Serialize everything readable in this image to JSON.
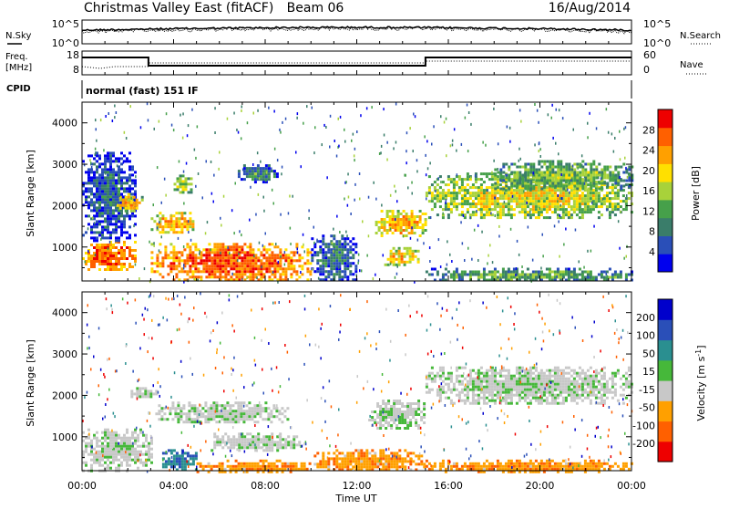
{
  "header": {
    "radar": "Christmas Valley East (fitACF)",
    "beam": "Beam 06",
    "date": "16/Aug/2014"
  },
  "noise_panel": {
    "left_label": "N.Sky",
    "right_label": "N.Search",
    "left_ticks": [
      "10^5",
      "10^0"
    ],
    "right_ticks": [
      "10^5",
      "10^0"
    ]
  },
  "freq_panel": {
    "left_label_1": "Freq.",
    "left_label_2": "[MHz]",
    "left_ticks": [
      "18",
      "8"
    ],
    "right_ticks": [
      "60",
      "0"
    ],
    "right_label": "Nave",
    "cpid_label": "CPID",
    "mode_text": "normal (fast) 151 IF"
  },
  "time_axis": {
    "label": "Time UT",
    "ticks": [
      "00:00",
      "04:00",
      "08:00",
      "12:00",
      "16:00",
      "20:00",
      "00:00"
    ]
  },
  "range_axis": {
    "label": "Slant Range [km]",
    "ticks": [
      "1000",
      "2000",
      "3000",
      "4000"
    ]
  },
  "chart_data": [
    {
      "type": "heatmap",
      "name": "power",
      "title": "",
      "xlabel": "Time UT",
      "ylabel": "Slant Range [km]",
      "xlim": [
        0,
        24
      ],
      "ylim": [
        180,
        4500
      ],
      "colorbar": {
        "label": "Power [dB]",
        "ticks": [
          "4",
          "8",
          "12",
          "16",
          "20",
          "24",
          "28"
        ],
        "range": [
          0,
          32
        ],
        "colors": [
          "#0000ee",
          "#2a4fb8",
          "#3a7d6a",
          "#46a04a",
          "#a8d23a",
          "#ffe000",
          "#ffa000",
          "#ff6000",
          "#ee0000"
        ]
      },
      "features": [
        {
          "t": [
            0.0,
            2.3
          ],
          "r": [
            450,
            1150
          ],
          "level": 0.9
        },
        {
          "t": [
            0.0,
            2.3
          ],
          "r": [
            1150,
            3300
          ],
          "level": 0.2
        },
        {
          "t": [
            1.5,
            2.6
          ],
          "r": [
            1900,
            2300
          ],
          "level": 0.7
        },
        {
          "t": [
            3.0,
            4.9
          ],
          "r": [
            1350,
            1850
          ],
          "level": 0.75
        },
        {
          "t": [
            3.0,
            10.0
          ],
          "r": [
            180,
            1100
          ],
          "level": 0.9
        },
        {
          "t": [
            4.0,
            4.8
          ],
          "r": [
            2300,
            2750
          ],
          "level": 0.55
        },
        {
          "t": [
            6.8,
            8.5
          ],
          "r": [
            2600,
            3000
          ],
          "level": 0.3
        },
        {
          "t": [
            10.0,
            12.0
          ],
          "r": [
            180,
            1300
          ],
          "level": 0.25
        },
        {
          "t": [
            12.8,
            15.0
          ],
          "r": [
            1300,
            1900
          ],
          "level": 0.75
        },
        {
          "t": [
            13.2,
            14.7
          ],
          "r": [
            600,
            1000
          ],
          "level": 0.7
        },
        {
          "t": [
            15.0,
            24.0
          ],
          "r": [
            1700,
            2800
          ],
          "level": 0.6
        },
        {
          "t": [
            18.0,
            24.0
          ],
          "r": [
            2400,
            3100
          ],
          "level": 0.45
        },
        {
          "t": [
            15.0,
            24.0
          ],
          "r": [
            180,
            500
          ],
          "level": 0.4
        }
      ]
    },
    {
      "type": "heatmap",
      "name": "velocity",
      "title": "",
      "xlabel": "Time UT",
      "ylabel": "Slant Range [km]",
      "xlim": [
        0,
        24
      ],
      "ylim": [
        180,
        4500
      ],
      "colorbar": {
        "label": "Velocity [m s^-1]",
        "ticks": [
          "200",
          "100",
          "50",
          "15",
          "-15",
          "-50",
          "-100",
          "-200"
        ],
        "range": [
          -250,
          250
        ],
        "colors": [
          "#ee0000",
          "#ff6000",
          "#ffa000",
          "#c8c8c8",
          "#46b83a",
          "#2a8f90",
          "#2a4fb8",
          "#0000cc"
        ]
      },
      "features": [
        {
          "t": [
            0.0,
            3.0
          ],
          "r": [
            180,
            1200
          ],
          "value": 0
        },
        {
          "t": [
            2.0,
            3.2
          ],
          "r": [
            1950,
            2200
          ],
          "value": 0
        },
        {
          "t": [
            3.2,
            9.0
          ],
          "r": [
            1350,
            1850
          ],
          "value": 0
        },
        {
          "t": [
            3.5,
            5.0
          ],
          "r": [
            180,
            700
          ],
          "value": 70
        },
        {
          "t": [
            5.0,
            10.0
          ],
          "r": [
            180,
            450
          ],
          "value": -60
        },
        {
          "t": [
            5.5,
            9.5
          ],
          "r": [
            700,
            1100
          ],
          "value": 0
        },
        {
          "t": [
            10.0,
            15.0
          ],
          "r": [
            180,
            700
          ],
          "value": -60
        },
        {
          "t": [
            12.5,
            15.0
          ],
          "r": [
            1200,
            1900
          ],
          "value": 0
        },
        {
          "t": [
            15.0,
            24.0
          ],
          "r": [
            1800,
            2700
          ],
          "value": 0
        },
        {
          "t": [
            15.0,
            24.0
          ],
          "r": [
            180,
            450
          ],
          "value": -60
        }
      ]
    }
  ]
}
